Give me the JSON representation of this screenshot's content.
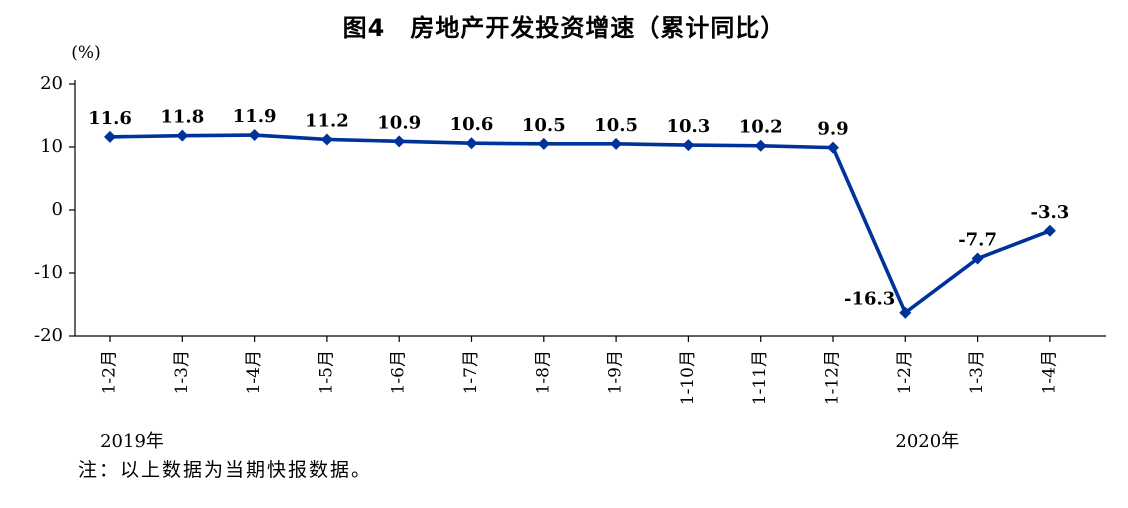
{
  "figure": {
    "note": "注：以上数据为当期快报数据。",
    "line_color": "#003399",
    "label_color": "#000000",
    "axis_color": "#000000"
  },
  "chart_data": {
    "type": "line",
    "title": "图4　房地产开发投资增速（累计同比）",
    "categories": [
      "1-2月",
      "1-3月",
      "1-4月",
      "1-5月",
      "1-6月",
      "1-7月",
      "1-8月",
      "1-9月",
      "1-10月",
      "1-11月",
      "1-12月",
      "1-2月",
      "1-3月",
      "1-4月"
    ],
    "series": [
      {
        "name": "房地产开发投资增速（累计同比）",
        "values": [
          11.6,
          11.8,
          11.9,
          11.2,
          10.9,
          10.6,
          10.5,
          10.5,
          10.3,
          10.2,
          9.9,
          -16.3,
          -7.7,
          -3.3
        ]
      }
    ],
    "data_labels": [
      "11.6",
      "11.8",
      "11.9",
      "11.2",
      "10.9",
      "10.6",
      "10.5",
      "10.5",
      "10.3",
      "10.2",
      "9.9",
      "-16.3",
      "-7.7",
      "-3.3"
    ],
    "xlabel": "",
    "ylabel": "(%)",
    "ylim": [
      -20,
      20
    ],
    "yticks": [
      20,
      10,
      0,
      -10,
      -20
    ],
    "year_groups": [
      {
        "label": "2019年",
        "start_index": 0,
        "end_index": 10
      },
      {
        "label": "2020年",
        "start_index": 11,
        "end_index": 13
      }
    ],
    "grid": false,
    "legend": "none",
    "marker": "diamond"
  }
}
